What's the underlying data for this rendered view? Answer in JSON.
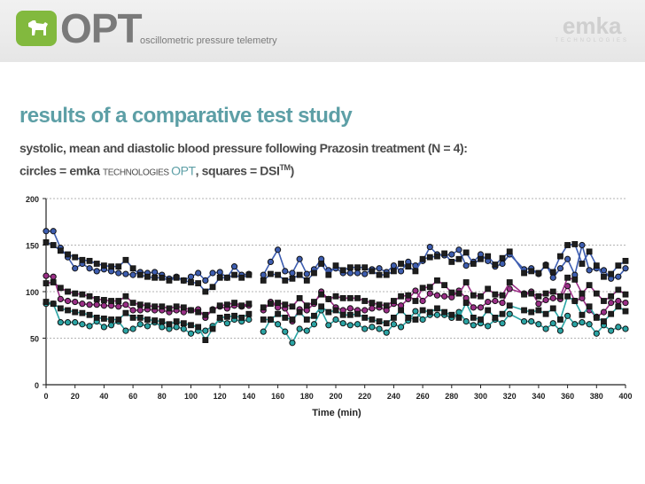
{
  "header": {
    "logo_text": "OPT",
    "tagline": "oscillometric pressure telemetry",
    "brand_name": "emka",
    "brand_sub": "TECHNOLOGIES"
  },
  "slide": {
    "title": "results of a comparative test study",
    "line1": "systolic, mean and diastolic blood pressure following Prazosin treatment (N = 4):",
    "line2_a": "circles = emka ",
    "line2_b": "TECHNOLOGIES ",
    "line2_c": "OPT",
    "line2_d": ", squares = DSI",
    "line2_tm": "TM",
    "line2_e": ")"
  },
  "colors": {
    "systolic": "#3d5db0",
    "mean": "#9a2e86",
    "diastolic": "#2aa4a4",
    "marker_edge": "#111111",
    "title": "#5d9fa6",
    "logo": "#82b93e"
  },
  "chart_data": {
    "type": "scatter",
    "title": "",
    "xlabel": "Time (min)",
    "ylabel": "",
    "xlim": [
      0,
      400
    ],
    "ylim": [
      0,
      200
    ],
    "xticks": [
      0,
      20,
      40,
      60,
      80,
      100,
      120,
      140,
      160,
      180,
      200,
      220,
      240,
      260,
      280,
      300,
      320,
      340,
      360,
      380,
      400
    ],
    "yticks": [
      0,
      50,
      100,
      150,
      200
    ],
    "series": [
      {
        "name": "Systolic OPT (circles)",
        "group": "systolic",
        "marker": "circle",
        "x": [
          0,
          5,
          10,
          15,
          20,
          25,
          30,
          35,
          40,
          45,
          50,
          55,
          60,
          65,
          70,
          75,
          80,
          85,
          90,
          95,
          100,
          105,
          110,
          115,
          120,
          125,
          130,
          135,
          140,
          150,
          155,
          160,
          165,
          170,
          175,
          180,
          185,
          190,
          195,
          200,
          205,
          210,
          215,
          220,
          225,
          230,
          235,
          240,
          245,
          250,
          255,
          260,
          265,
          270,
          275,
          280,
          285,
          290,
          295,
          300,
          305,
          310,
          315,
          320,
          330,
          335,
          340,
          345,
          350,
          355,
          360,
          365,
          370,
          375,
          380,
          385,
          390,
          395,
          400
        ],
        "y": [
          165,
          165,
          147,
          137,
          125,
          130,
          125,
          122,
          124,
          122,
          120,
          119,
          118,
          121,
          120,
          121,
          118,
          114,
          116,
          112,
          116,
          120,
          112,
          120,
          121,
          115,
          127,
          118,
          119,
          118,
          132,
          145,
          122,
          120,
          135,
          119,
          124,
          135,
          123,
          125,
          120,
          120,
          120,
          119,
          124,
          125,
          121,
          128,
          122,
          132,
          128,
          133,
          148,
          140,
          139,
          140,
          145,
          128,
          132,
          140,
          133,
          127,
          130,
          140,
          124,
          125,
          119,
          129,
          115,
          125,
          135,
          118,
          150,
          123,
          125,
          123,
          114,
          116,
          125
        ]
      },
      {
        "name": "Systolic DSI (squares)",
        "group": "systolic",
        "marker": "square",
        "x": [
          0,
          5,
          10,
          15,
          20,
          25,
          30,
          35,
          40,
          45,
          50,
          55,
          60,
          65,
          70,
          75,
          80,
          85,
          90,
          95,
          100,
          105,
          110,
          115,
          120,
          125,
          130,
          135,
          140,
          150,
          155,
          160,
          165,
          170,
          175,
          180,
          185,
          190,
          195,
          200,
          205,
          210,
          215,
          220,
          225,
          230,
          235,
          240,
          245,
          250,
          255,
          260,
          265,
          270,
          275,
          280,
          285,
          290,
          295,
          300,
          305,
          310,
          315,
          320,
          330,
          335,
          340,
          345,
          350,
          355,
          360,
          365,
          370,
          375,
          380,
          385,
          390,
          395,
          400
        ],
        "y": [
          153,
          150,
          144,
          140,
          137,
          134,
          133,
          130,
          128,
          127,
          127,
          134,
          125,
          118,
          116,
          115,
          115,
          112,
          115,
          112,
          110,
          109,
          100,
          105,
          115,
          115,
          118,
          115,
          118,
          112,
          119,
          118,
          112,
          114,
          118,
          112,
          120,
          130,
          118,
          128,
          123,
          126,
          126,
          126,
          122,
          118,
          118,
          122,
          130,
          127,
          122,
          135,
          137,
          138,
          141,
          132,
          135,
          142,
          130,
          135,
          138,
          129,
          136,
          143,
          120,
          122,
          120,
          128,
          121,
          138,
          150,
          151,
          130,
          143,
          128,
          116,
          119,
          128,
          133
        ]
      },
      {
        "name": "Mean OPT (circles)",
        "group": "mean",
        "marker": "circle",
        "x": [
          0,
          5,
          10,
          15,
          20,
          25,
          30,
          35,
          40,
          45,
          50,
          55,
          60,
          65,
          70,
          75,
          80,
          85,
          90,
          95,
          100,
          105,
          110,
          115,
          120,
          125,
          130,
          135,
          140,
          150,
          155,
          160,
          165,
          170,
          175,
          180,
          185,
          190,
          195,
          200,
          205,
          210,
          215,
          220,
          225,
          230,
          235,
          240,
          245,
          250,
          255,
          260,
          265,
          270,
          275,
          280,
          285,
          290,
          295,
          300,
          305,
          310,
          315,
          320,
          330,
          335,
          340,
          345,
          350,
          355,
          360,
          365,
          370,
          375,
          380,
          385,
          390,
          395,
          400
        ],
        "y": [
          117,
          116,
          92,
          90,
          89,
          87,
          86,
          86,
          85,
          85,
          84,
          86,
          80,
          80,
          81,
          80,
          80,
          78,
          80,
          78,
          80,
          81,
          72,
          81,
          84,
          82,
          85,
          84,
          85,
          80,
          89,
          83,
          82,
          68,
          81,
          80,
          87,
          100,
          92,
          83,
          80,
          82,
          80,
          80,
          82,
          83,
          80,
          87,
          85,
          92,
          101,
          90,
          98,
          96,
          95,
          94,
          101,
          93,
          83,
          83,
          89,
          90,
          88,
          103,
          98,
          100,
          87,
          91,
          93,
          92,
          106,
          90,
          93,
          80,
          73,
          78,
          88,
          90,
          88
        ]
      },
      {
        "name": "Mean DSI (squares)",
        "group": "mean",
        "marker": "square",
        "x": [
          0,
          5,
          10,
          15,
          20,
          25,
          30,
          35,
          40,
          45,
          50,
          55,
          60,
          65,
          70,
          75,
          80,
          85,
          90,
          95,
          100,
          105,
          110,
          115,
          120,
          125,
          130,
          135,
          140,
          150,
          155,
          160,
          165,
          170,
          175,
          180,
          185,
          190,
          195,
          200,
          205,
          210,
          215,
          220,
          225,
          230,
          235,
          240,
          245,
          250,
          255,
          260,
          265,
          270,
          275,
          280,
          285,
          290,
          295,
          300,
          305,
          310,
          315,
          320,
          330,
          335,
          340,
          345,
          350,
          355,
          360,
          365,
          370,
          375,
          380,
          385,
          390,
          395,
          400
        ],
        "y": [
          109,
          110,
          104,
          100,
          98,
          97,
          95,
          92,
          91,
          90,
          90,
          95,
          88,
          86,
          85,
          84,
          84,
          82,
          84,
          83,
          80,
          78,
          75,
          80,
          85,
          86,
          88,
          85,
          87,
          83,
          87,
          88,
          86,
          84,
          93,
          85,
          89,
          97,
          92,
          95,
          93,
          93,
          93,
          90,
          88,
          86,
          85,
          90,
          95,
          96,
          90,
          104,
          105,
          112,
          107,
          99,
          98,
          110,
          96,
          95,
          103,
          97,
          96,
          110,
          97,
          98,
          95,
          98,
          100,
          95,
          115,
          113,
          98,
          107,
          98,
          90,
          95,
          102,
          97
        ]
      },
      {
        "name": "Diastolic OPT (circles)",
        "group": "diastolic",
        "marker": "circle",
        "x": [
          0,
          5,
          10,
          15,
          20,
          25,
          30,
          35,
          40,
          45,
          50,
          55,
          60,
          65,
          70,
          75,
          80,
          85,
          90,
          95,
          100,
          105,
          110,
          115,
          120,
          125,
          130,
          135,
          140,
          150,
          155,
          160,
          165,
          170,
          175,
          180,
          185,
          190,
          195,
          200,
          205,
          210,
          215,
          220,
          225,
          230,
          235,
          240,
          245,
          250,
          255,
          260,
          265,
          270,
          275,
          280,
          285,
          290,
          295,
          300,
          305,
          310,
          315,
          320,
          330,
          335,
          340,
          345,
          350,
          355,
          360,
          365,
          370,
          375,
          380,
          385,
          390,
          395,
          400
        ],
        "y": [
          87,
          87,
          67,
          67,
          67,
          65,
          63,
          68,
          62,
          64,
          68,
          58,
          60,
          65,
          63,
          67,
          62,
          60,
          62,
          60,
          55,
          58,
          58,
          63,
          70,
          66,
          70,
          68,
          70,
          57,
          70,
          65,
          57,
          45,
          60,
          58,
          65,
          80,
          64,
          70,
          66,
          64,
          65,
          60,
          62,
          60,
          56,
          65,
          62,
          69,
          79,
          70,
          75,
          75,
          75,
          72,
          78,
          68,
          64,
          66,
          63,
          70,
          66,
          76,
          68,
          68,
          65,
          60,
          66,
          58,
          74,
          65,
          67,
          65,
          55,
          64,
          58,
          62,
          60
        ]
      },
      {
        "name": "Diastolic DSI (squares)",
        "group": "diastolic",
        "marker": "square",
        "x": [
          0,
          5,
          10,
          15,
          20,
          25,
          30,
          35,
          40,
          45,
          50,
          55,
          60,
          65,
          70,
          75,
          80,
          85,
          90,
          95,
          100,
          105,
          110,
          115,
          120,
          125,
          130,
          135,
          140,
          150,
          155,
          160,
          165,
          170,
          175,
          180,
          185,
          190,
          195,
          200,
          205,
          210,
          215,
          220,
          225,
          230,
          235,
          240,
          245,
          250,
          255,
          260,
          265,
          270,
          275,
          280,
          285,
          290,
          295,
          300,
          305,
          310,
          315,
          320,
          330,
          335,
          340,
          345,
          350,
          355,
          360,
          365,
          370,
          375,
          380,
          385,
          390,
          395,
          400
        ],
        "y": [
          89,
          87,
          82,
          80,
          78,
          77,
          75,
          72,
          71,
          70,
          70,
          77,
          72,
          72,
          70,
          69,
          68,
          65,
          68,
          66,
          64,
          62,
          48,
          60,
          72,
          73,
          74,
          72,
          76,
          70,
          70,
          76,
          72,
          70,
          78,
          70,
          74,
          84,
          78,
          80,
          75,
          75,
          76,
          72,
          70,
          68,
          66,
          72,
          80,
          72,
          70,
          80,
          78,
          82,
          78,
          75,
          72,
          88,
          72,
          70,
          80,
          72,
          76,
          85,
          80,
          78,
          80,
          76,
          82,
          70,
          95,
          90,
          75,
          84,
          72,
          68,
          76,
          84,
          79
        ]
      }
    ]
  }
}
